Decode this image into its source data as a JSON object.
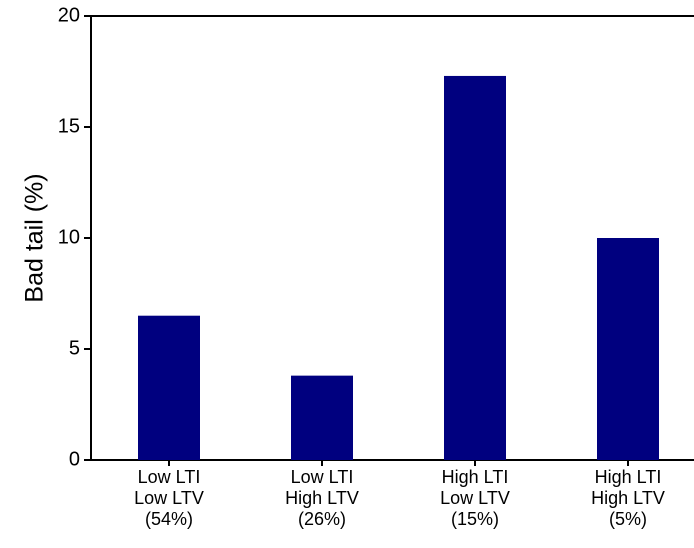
{
  "chart_data": {
    "type": "bar",
    "ylabel": "Bad tail (%)",
    "categories": [
      "Low LTI\nLow LTV\n(54%)",
      "Low LTI\nHigh LTV\n(26%)",
      "High LTI\nLow LTV\n(15%)",
      "High LTI\nHigh LTV\n(5%)"
    ],
    "values": [
      6.5,
      3.8,
      17.3,
      10.0
    ],
    "color": "#00007f",
    "ylim": [
      0,
      20
    ],
    "yticks": [
      0,
      5,
      10,
      15,
      20
    ],
    "grid": false
  }
}
